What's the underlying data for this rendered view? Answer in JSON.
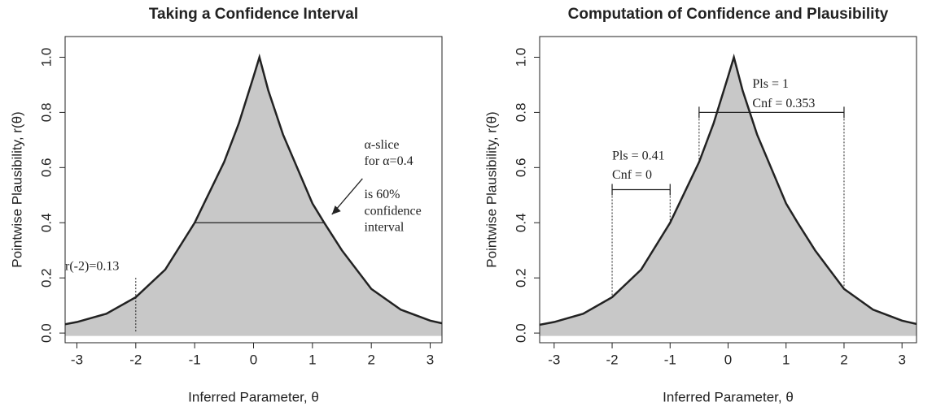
{
  "chart_data": [
    {
      "type": "line",
      "title": "Taking a Confidence Interval",
      "x_label": "Inferred Parameter, θ",
      "y_label": "Pointwise Plausibility, r(θ)",
      "x": [
        -3.25,
        -3,
        -2.5,
        -2,
        -1.5,
        -1,
        -0.5,
        -0.25,
        0,
        0.1,
        0.25,
        0.5,
        1,
        1.2,
        1.5,
        2,
        2.5,
        3,
        3.25
      ],
      "values": [
        0.03,
        0.04,
        0.07,
        0.13,
        0.23,
        0.4,
        0.62,
        0.76,
        0.93,
        1.0,
        0.88,
        0.72,
        0.47,
        0.4,
        0.3,
        0.16,
        0.085,
        0.045,
        0.033
      ],
      "color": "#c8c8c8",
      "xlim": [
        -3.2,
        3.2
      ],
      "ylim": [
        -0.035,
        1.075
      ],
      "xticks": [
        -3,
        -2,
        -1,
        0,
        1,
        2,
        3
      ],
      "yticks": [
        {
          "value": 0,
          "label": "0.0"
        },
        {
          "value": 0.2,
          "label": "0.2"
        },
        {
          "value": 0.4,
          "label": "0.4"
        },
        {
          "value": 0.6,
          "label": "0.6"
        },
        {
          "value": 0.8,
          "label": "0.8"
        },
        {
          "value": 1,
          "label": "1.0"
        }
      ],
      "intervals": [
        {
          "from": -1,
          "to": 1.2,
          "level": 0.4
        }
      ],
      "marker": {
        "x": -2,
        "top": 0.2
      },
      "annotations": [
        {
          "text": "r(-2)=0.13",
          "x": -3.2,
          "y": 0.24
        },
        {
          "text": "α-slice",
          "x": 1.88,
          "y": 0.68
        },
        {
          "text": "for α=0.4",
          "x": 1.88,
          "y": 0.62
        },
        {
          "text": "is 60%",
          "x": 1.88,
          "y": 0.5
        },
        {
          "text": "confidence",
          "x": 1.88,
          "y": 0.44
        },
        {
          "text": "interval",
          "x": 1.88,
          "y": 0.38
        }
      ]
    },
    {
      "type": "line",
      "title": "Computation of Confidence and Plausibility",
      "x_label": "Inferred Parameter, θ",
      "y_label": "Pointwise Plausibility, r(θ)",
      "x": [
        -3.25,
        -3,
        -2.5,
        -2,
        -1.5,
        -1,
        -0.5,
        -0.25,
        0,
        0.1,
        0.25,
        0.5,
        1,
        1.2,
        1.5,
        2,
        2.5,
        3,
        3.25
      ],
      "values": [
        0.03,
        0.04,
        0.07,
        0.13,
        0.23,
        0.4,
        0.62,
        0.76,
        0.93,
        1.0,
        0.88,
        0.72,
        0.47,
        0.4,
        0.3,
        0.16,
        0.085,
        0.045,
        0.033
      ],
      "color": "#c8c8c8",
      "xlim": [
        -3.25,
        3.25
      ],
      "ylim": [
        -0.035,
        1.075
      ],
      "xticks": [
        -3,
        -2,
        -1,
        0,
        1,
        2,
        3
      ],
      "yticks": [
        {
          "value": 0,
          "label": "0.0"
        },
        {
          "value": 0.2,
          "label": "0.2"
        },
        {
          "value": 0.4,
          "label": "0.4"
        },
        {
          "value": 0.6,
          "label": "0.6"
        },
        {
          "value": 0.8,
          "label": "0.8"
        },
        {
          "value": 1,
          "label": "1.0"
        }
      ],
      "intervals": [
        {
          "from": -2,
          "to": -1,
          "level": 0.52
        },
        {
          "from": -0.5,
          "to": 2,
          "level": 0.8
        }
      ],
      "annotations": [
        {
          "text": "Pls = 0.41",
          "x": -2.0,
          "y": 0.64
        },
        {
          "text": "Cnf = 0",
          "x": -2.0,
          "y": 0.57
        },
        {
          "text": "Pls = 1",
          "x": 0.42,
          "y": 0.9
        },
        {
          "text": "Cnf = 0.353",
          "x": 0.42,
          "y": 0.83
        }
      ]
    }
  ]
}
